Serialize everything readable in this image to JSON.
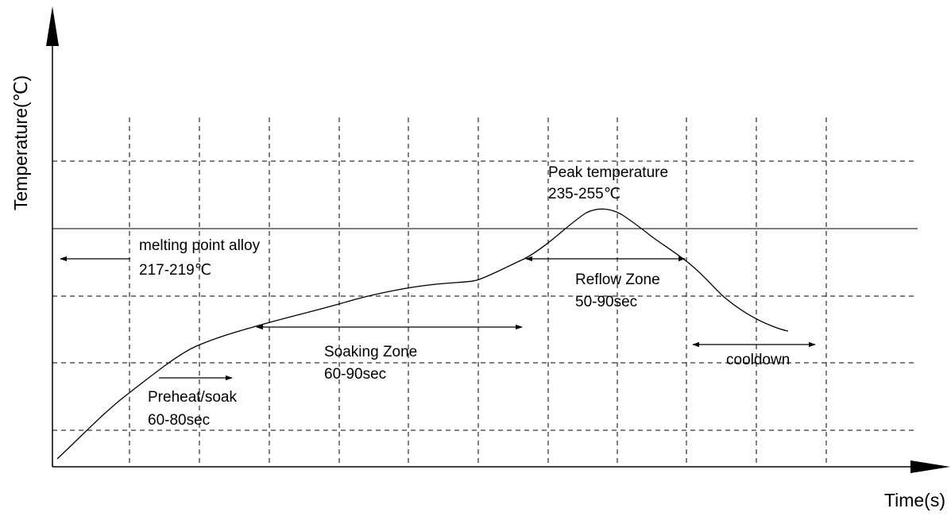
{
  "axes": {
    "y_label": "Temperature(℃)",
    "x_label": "Time(s)"
  },
  "annotations": {
    "melting_point": {
      "line1": "melting point alloy",
      "line2": "217-219℃"
    },
    "peak": {
      "line1": "Peak temperature",
      "line2": "235-255℃"
    },
    "preheat": {
      "line1": "Preheat/soak",
      "line2": "60-80sec"
    },
    "soaking": {
      "line1": "Soaking Zone",
      "line2": "60-90sec"
    },
    "reflow": {
      "line1": "Reflow Zone",
      "line2": "50-90sec"
    },
    "cooldown": {
      "line1": "cooldown"
    }
  },
  "style": {
    "line_color": "#000000",
    "grid_color": "#000000",
    "background": "#ffffff"
  }
}
